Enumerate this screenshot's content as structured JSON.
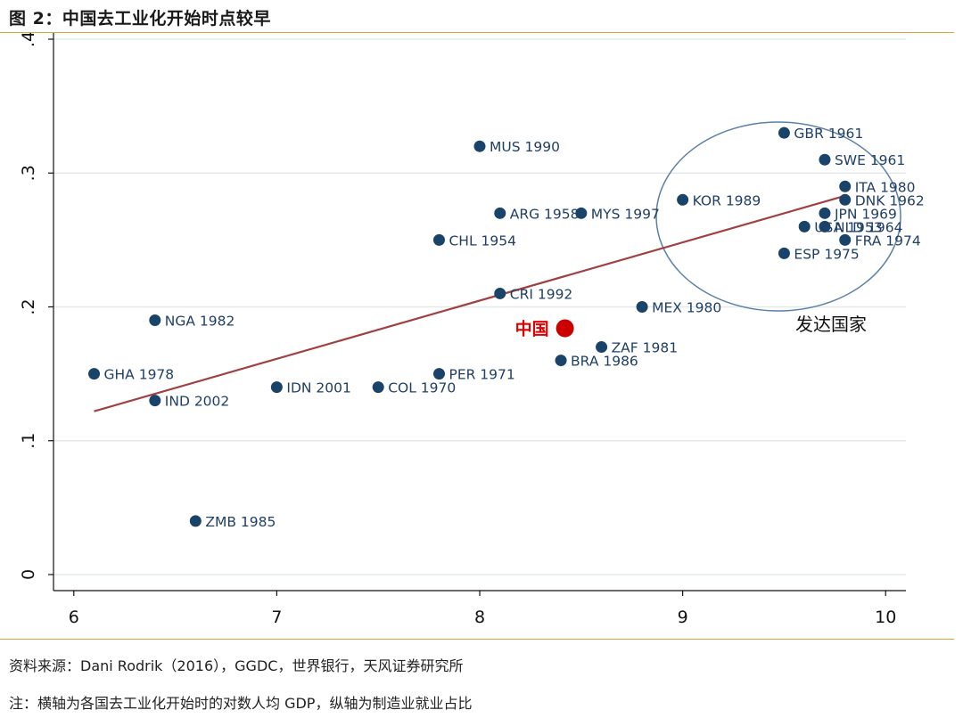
{
  "title": "图 2：中国去工业化开始时点较早",
  "source": "资料来源：Dani Rodrik（2016），GGDC，世界银行，天风证券研究所",
  "note": "注：横轴为各国去工业化开始时的对数人均 GDP，纵轴为制造业就业占比",
  "colors": {
    "point": "#1a4369",
    "highlight": "#cc0000",
    "fit_line": "#a04040",
    "ellipse": "#5a80a8",
    "grid": "#e4eaea",
    "rule": "#d9a441"
  },
  "chart_data": {
    "type": "scatter",
    "title": "",
    "xlabel": "",
    "ylabel": "",
    "xlim": [
      5.9,
      10.1
    ],
    "ylim": [
      -0.012,
      0.402
    ],
    "x_ticks": [
      6,
      7,
      8,
      9,
      10
    ],
    "x_tick_labels": [
      "6",
      "7",
      "8",
      "9",
      "10"
    ],
    "y_ticks": [
      0,
      0.1,
      0.2,
      0.3,
      0.4
    ],
    "y_tick_labels": [
      "0",
      ".1",
      ".2",
      ".3",
      ".4"
    ],
    "grid": "horizontal",
    "points": [
      {
        "label": "GBR 1961",
        "x": 9.5,
        "y": 0.33
      },
      {
        "label": "SWE 1961",
        "x": 9.7,
        "y": 0.31
      },
      {
        "label": "MUS 1990",
        "x": 8.0,
        "y": 0.32
      },
      {
        "label": "ITA 1980",
        "x": 9.8,
        "y": 0.29
      },
      {
        "label": "KOR 1989",
        "x": 9.0,
        "y": 0.28
      },
      {
        "label": "DNK 1962",
        "x": 9.8,
        "y": 0.28
      },
      {
        "label": "ARG 1958",
        "x": 8.1,
        "y": 0.27
      },
      {
        "label": "MYS 1997",
        "x": 8.5,
        "y": 0.27
      },
      {
        "label": "JPN 1969",
        "x": 9.7,
        "y": 0.27
      },
      {
        "label": "USA 1953",
        "x": 9.6,
        "y": 0.26
      },
      {
        "label": "NLD 1964",
        "x": 9.7,
        "y": 0.26
      },
      {
        "label": "CHL 1954",
        "x": 7.8,
        "y": 0.25
      },
      {
        "label": "FRA 1974",
        "x": 9.8,
        "y": 0.25
      },
      {
        "label": "ESP 1975",
        "x": 9.5,
        "y": 0.24
      },
      {
        "label": "CRI 1992",
        "x": 8.1,
        "y": 0.21
      },
      {
        "label": "MEX 1980",
        "x": 8.8,
        "y": 0.2
      },
      {
        "label": "NGA 1982",
        "x": 6.4,
        "y": 0.19
      },
      {
        "label": "ZAF 1981",
        "x": 8.6,
        "y": 0.17
      },
      {
        "label": "BRA 1986",
        "x": 8.4,
        "y": 0.16
      },
      {
        "label": "GHA 1978",
        "x": 6.1,
        "y": 0.15
      },
      {
        "label": "PER 1971",
        "x": 7.8,
        "y": 0.15
      },
      {
        "label": "IDN 2001",
        "x": 7.0,
        "y": 0.14
      },
      {
        "label": "COL 1970",
        "x": 7.5,
        "y": 0.14
      },
      {
        "label": "IND 2002",
        "x": 6.4,
        "y": 0.13
      },
      {
        "label": "ZMB 1985",
        "x": 6.6,
        "y": 0.04
      }
    ],
    "highlight": {
      "label": "中国",
      "x": 8.42,
      "y": 0.184
    },
    "fit_line": {
      "x": [
        6.1,
        9.8
      ],
      "y": [
        0.122,
        0.283
      ]
    },
    "annotation": {
      "label": "发达国家"
    }
  }
}
